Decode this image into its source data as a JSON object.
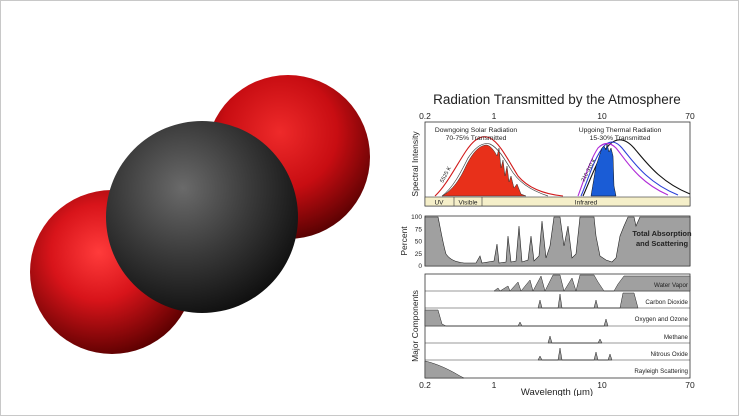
{
  "figure": {
    "title": "Radiation Transmitted by the Atmosphere",
    "top_ticks": [
      "0.2",
      "1",
      "10",
      "70"
    ],
    "bottom_ticks": [
      "0.2",
      "1",
      "10",
      "70"
    ],
    "xlabel": "Wavelength (μm)",
    "spectral": {
      "ylabel": "Spectral Intensity",
      "solar_title": "Downgoing Solar Radiation",
      "solar_sub": "70-75% Transmitted",
      "thermal_title": "Upgoing Thermal Radiation",
      "thermal_sub": "15-30% Transmitted",
      "solar_temp": "5525 K",
      "thermal_temp": "210-310 K",
      "bands": [
        "UV",
        "Visible",
        "Infrared"
      ]
    },
    "absorption": {
      "ylabel": "Percent",
      "yticks": [
        "100",
        "75",
        "50",
        "25",
        "0"
      ],
      "label_line1": "Total Absorption",
      "label_line2": "and Scattering"
    },
    "components": {
      "ylabel": "Major Components",
      "items": [
        "Water Vapor",
        "Carbon Dioxide",
        "Oxygen and Ozone",
        "Methane",
        "Nitrous Oxide",
        "Rayleigh Scattering"
      ]
    },
    "colors": {
      "solar_fill": "#e8301a",
      "thermal_fill": "#1a5cd6",
      "absorption_fill": "#a0a0a0",
      "band_fill": "#f5efc9"
    }
  },
  "molecule": {
    "name_icon": "carbon-dioxide-space-filling-model-icon",
    "colors": {
      "oxygen": "#d8141a",
      "carbon": "#3a3a3a"
    }
  }
}
